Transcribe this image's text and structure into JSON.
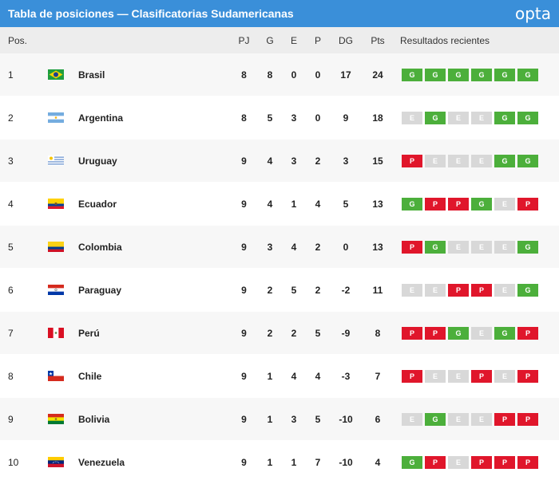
{
  "header": {
    "title": "Tabla de posiciones — Clasificatorias Sudamericanas",
    "logo": "opta"
  },
  "columns": {
    "pos": "Pos.",
    "pj": "PJ",
    "g": "G",
    "e": "E",
    "p": "P",
    "dg": "DG",
    "pts": "Pts",
    "recent": "Resultados recientes"
  },
  "colors": {
    "accent": "#3a8fd9",
    "win": "#4caf3b",
    "draw": "#d8d8d8",
    "loss": "#e0162b"
  },
  "rows": [
    {
      "pos": "1",
      "flag": "brazil-flag-icon",
      "team": "Brasil",
      "pj": "8",
      "g": "8",
      "e": "0",
      "p": "0",
      "dg": "17",
      "pts": "24",
      "recent": [
        "G",
        "G",
        "G",
        "G",
        "G",
        "G"
      ]
    },
    {
      "pos": "2",
      "flag": "argentina-flag-icon",
      "team": "Argentina",
      "pj": "8",
      "g": "5",
      "e": "3",
      "p": "0",
      "dg": "9",
      "pts": "18",
      "recent": [
        "E",
        "G",
        "E",
        "E",
        "G",
        "G"
      ]
    },
    {
      "pos": "3",
      "flag": "uruguay-flag-icon",
      "team": "Uruguay",
      "pj": "9",
      "g": "4",
      "e": "3",
      "p": "2",
      "dg": "3",
      "pts": "15",
      "recent": [
        "P",
        "E",
        "E",
        "E",
        "G",
        "G"
      ]
    },
    {
      "pos": "4",
      "flag": "ecuador-flag-icon",
      "team": "Ecuador",
      "pj": "9",
      "g": "4",
      "e": "1",
      "p": "4",
      "dg": "5",
      "pts": "13",
      "recent": [
        "G",
        "P",
        "P",
        "G",
        "E",
        "P"
      ]
    },
    {
      "pos": "5",
      "flag": "colombia-flag-icon",
      "team": "Colombia",
      "pj": "9",
      "g": "3",
      "e": "4",
      "p": "2",
      "dg": "0",
      "pts": "13",
      "recent": [
        "P",
        "G",
        "E",
        "E",
        "E",
        "G"
      ]
    },
    {
      "pos": "6",
      "flag": "paraguay-flag-icon",
      "team": "Paraguay",
      "pj": "9",
      "g": "2",
      "e": "5",
      "p": "2",
      "dg": "-2",
      "pts": "11",
      "recent": [
        "E",
        "E",
        "P",
        "P",
        "E",
        "G"
      ]
    },
    {
      "pos": "7",
      "flag": "peru-flag-icon",
      "team": "Perú",
      "pj": "9",
      "g": "2",
      "e": "2",
      "p": "5",
      "dg": "-9",
      "pts": "8",
      "recent": [
        "P",
        "P",
        "G",
        "E",
        "G",
        "P"
      ]
    },
    {
      "pos": "8",
      "flag": "chile-flag-icon",
      "team": "Chile",
      "pj": "9",
      "g": "1",
      "e": "4",
      "p": "4",
      "dg": "-3",
      "pts": "7",
      "recent": [
        "P",
        "E",
        "E",
        "P",
        "E",
        "P"
      ]
    },
    {
      "pos": "9",
      "flag": "bolivia-flag-icon",
      "team": "Bolivia",
      "pj": "9",
      "g": "1",
      "e": "3",
      "p": "5",
      "dg": "-10",
      "pts": "6",
      "recent": [
        "E",
        "G",
        "E",
        "E",
        "P",
        "P"
      ]
    },
    {
      "pos": "10",
      "flag": "venezuela-flag-icon",
      "team": "Venezuela",
      "pj": "9",
      "g": "1",
      "e": "1",
      "p": "7",
      "dg": "-10",
      "pts": "4",
      "recent": [
        "G",
        "P",
        "E",
        "P",
        "P",
        "P"
      ]
    }
  ]
}
